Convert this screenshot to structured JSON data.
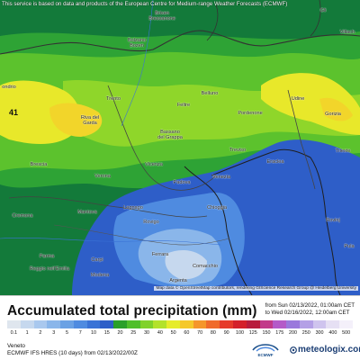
{
  "notice": "This service is based on data and products of the European Centre for Medium-range Weather Forecasts (ECMWF)",
  "attribution": "Map data © OpenStreetMap contributors, rendering GIScience Research Group @ Heidelberg University",
  "map_number": "41",
  "cities": {
    "brixen": "Brixen\nBressanone",
    "bolzano": "Bolzano\nBozen",
    "trento": "Trento",
    "belluno": "Belluno",
    "feltre": "Feltre",
    "pordenone": "Pordenone",
    "udine": "Udine",
    "gorizia": "Gorizia",
    "trieste": "Trieste",
    "sondrio": "ondrio",
    "riva": "Riva del\nGarda",
    "brescia": "Brescia",
    "bassano": "Bassano\ndel Grappa",
    "treviso": "Treviso",
    "eraclea": "Eraclea",
    "verona": "Verona",
    "vicenza": "Vicenza",
    "padova": "Padova",
    "venezia": "Venezia",
    "cremona": "Cremona",
    "mantova": "Mantova",
    "legnago": "Legnago",
    "chioggia": "Chioggia",
    "rovigo": "Rovigo",
    "parma": "Parma",
    "carpi": "Carpi",
    "reggio": "Reggio nell'Emilia",
    "modena": "Modena",
    "ferrara": "Ferrara",
    "comacchio": "Comacchio",
    "rovinj": "Rovinj",
    "pula": "Pula",
    "argenta": "Argenta",
    "villach": "Villach",
    "gli": "Gli"
  },
  "legend": {
    "title": "Accumulated total precipitation (mm)",
    "from": "from Sun 02/13/2022, 01:00am CET",
    "to": "to Wed 02/16/2022, 12:00am CET",
    "ticks": [
      "0.1",
      "1",
      "2",
      "3",
      "5",
      "7",
      "10",
      "15",
      "20",
      "25",
      "30",
      "40",
      "50",
      "60",
      "70",
      "80",
      "90",
      "100",
      "125",
      "150",
      "175",
      "200",
      "250",
      "300",
      "400",
      "500"
    ],
    "colors": [
      "#dfe6ee",
      "#c6d8ee",
      "#a9c8ee",
      "#8ab6ea",
      "#6aa1e4",
      "#4f8be0",
      "#3a73d6",
      "#2e5ec8",
      "#2aa02a",
      "#4fbf2a",
      "#80d22a",
      "#b3e22a",
      "#e6ec2a",
      "#f5c82a",
      "#f5962a",
      "#f06a2a",
      "#e63a2a",
      "#d4202a",
      "#b81c3c",
      "#c23a8a",
      "#b45ac8",
      "#9a78dc",
      "#b4a0e6",
      "#cfc4ee",
      "#e6e0f4",
      "#f4f0fa"
    ],
    "region": "Veneto",
    "model": "ECMWF IFS HRES (10 days) from 02/13/2022/00Z",
    "provider_logo": "ECMWF",
    "brand": "meteologix.com"
  }
}
